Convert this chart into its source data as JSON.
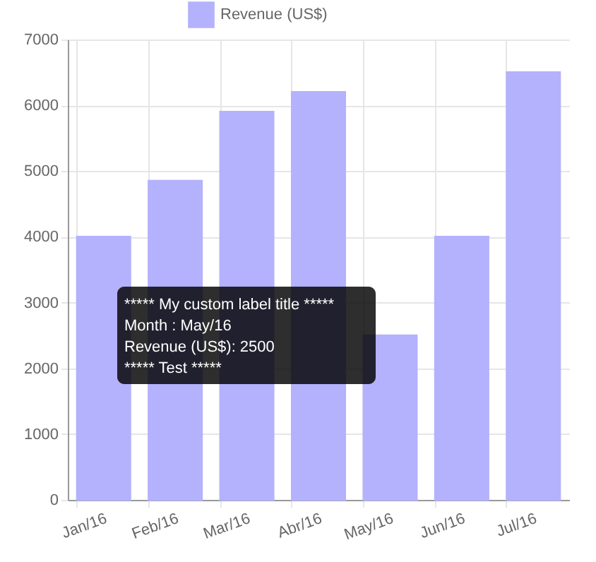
{
  "chart_data": {
    "type": "bar",
    "categories": [
      "Jan/16",
      "Feb/16",
      "Mar/16",
      "Abr/16",
      "May/16",
      "Jun/16",
      "Jul/16"
    ],
    "series": [
      {
        "name": "Revenue (US$)",
        "color": "#b4b2fc",
        "values": [
          4000,
          4850,
          5900,
          6200,
          2500,
          4000,
          6500
        ]
      }
    ],
    "ylim": [
      0,
      7000
    ],
    "yticks": [
      0,
      1000,
      2000,
      3000,
      4000,
      5000,
      6000,
      7000
    ],
    "grid": true,
    "legend": "top",
    "annotations": [
      "***** My custom label title *****",
      "Month : May/16",
      "Revenue (US$): 2500",
      "***** Test *****"
    ]
  }
}
